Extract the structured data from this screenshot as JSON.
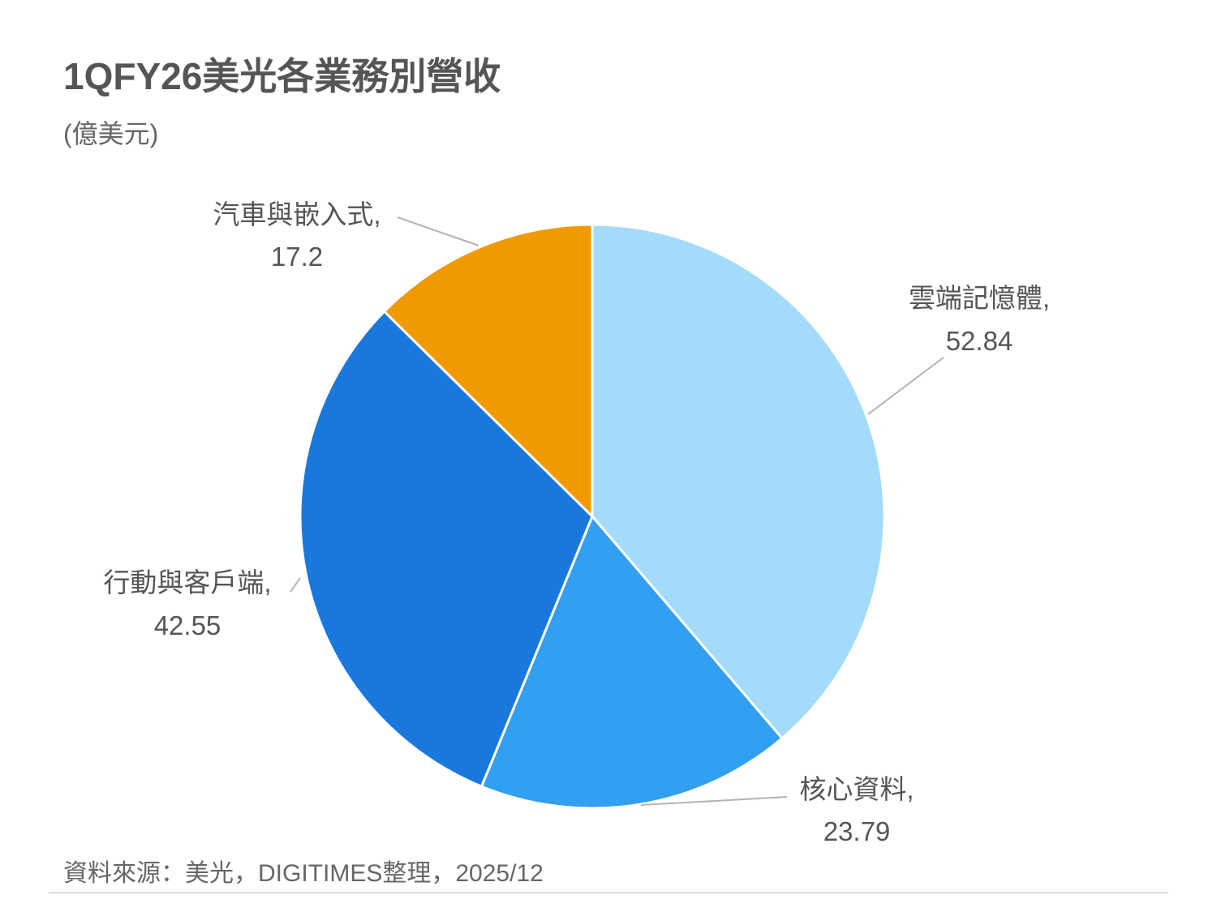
{
  "chart_data": {
    "type": "pie",
    "title": "1QFY26美光各業務別營收",
    "subtitle": "(億美元)",
    "source": "資料來源：美光，DIGITIMES整理，2025/12",
    "slices": [
      {
        "label": "雲端記憶體",
        "value": 52.84,
        "value_text": "52.84",
        "color": "#a4dbfb"
      },
      {
        "label": "核心資料",
        "value": 23.79,
        "value_text": "23.79",
        "color": "#329ff0"
      },
      {
        "label": "行動與客戶端",
        "value": 42.55,
        "value_text": "42.55",
        "color": "#1978dc"
      },
      {
        "label": "汽車與嵌入式",
        "value": 17.2,
        "value_text": "17.2",
        "color": "#f09a00"
      }
    ],
    "start_angle": "12 o'clock",
    "direction": "clockwise",
    "legend": "none"
  }
}
